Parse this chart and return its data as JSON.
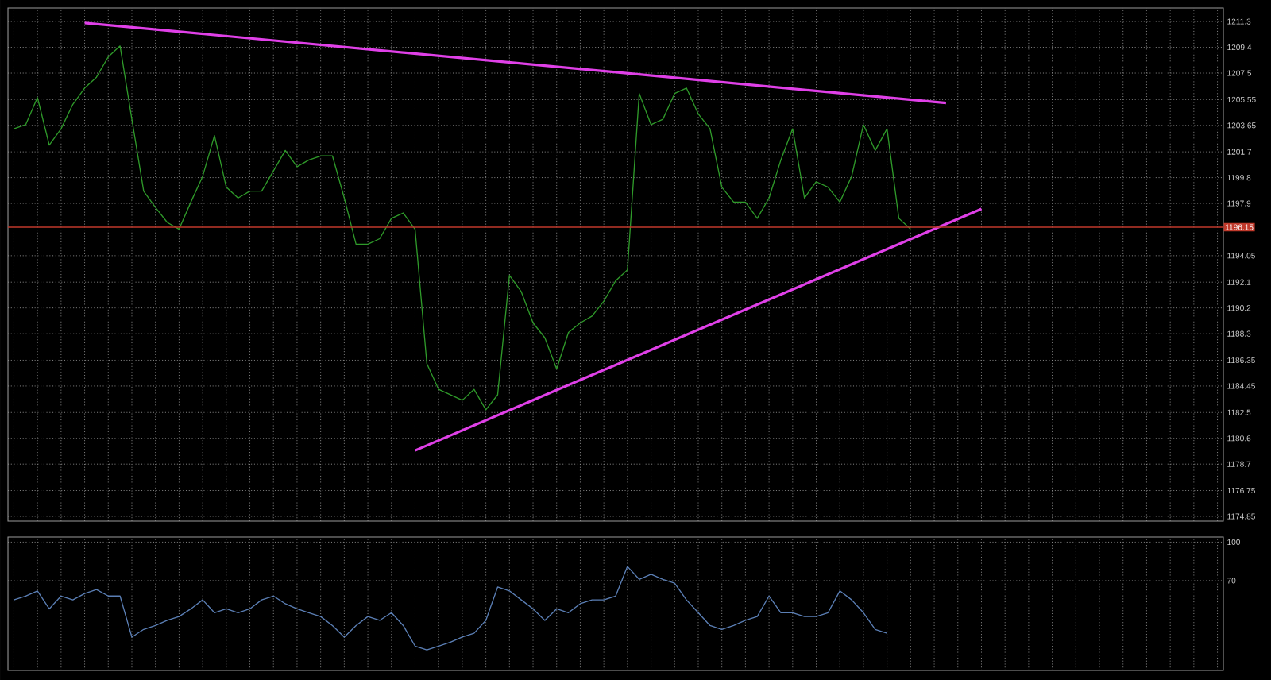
{
  "chart_data": [
    {
      "type": "line",
      "categories": [
        null,
        null,
        null,
        null,
        null,
        null,
        null,
        null,
        null,
        null,
        null,
        null,
        null,
        null,
        null,
        null,
        null,
        null,
        null,
        null,
        null,
        null,
        null,
        null,
        null,
        null,
        null,
        null,
        null,
        null,
        null,
        null,
        null,
        null,
        null,
        null,
        null,
        null,
        null,
        null,
        null,
        null,
        null,
        null,
        null,
        null,
        null,
        null,
        null,
        null,
        null,
        null,
        null,
        null,
        null,
        null,
        null,
        null,
        null,
        null,
        null,
        null,
        null,
        null,
        null,
        null,
        null,
        null,
        null,
        null,
        null,
        null,
        null,
        null,
        null,
        null,
        null,
        null,
        null,
        null,
        null,
        null,
        null,
        null,
        null,
        null,
        null,
        null,
        null,
        null,
        null,
        null,
        null,
        null,
        null,
        null,
        null,
        null,
        null,
        null,
        null,
        null,
        null
      ],
      "series": [
        {
          "color": "#2f9a2a",
          "values": [
            1203.4,
            1203.7,
            1205.7,
            1202.2,
            1203.4,
            1205.2,
            1206.4,
            1207.2,
            1208.7,
            1209.5,
            1204.1,
            1198.8,
            1197.6,
            1196.5,
            1196.0,
            1198.0,
            1199.9,
            1202.9,
            1199.1,
            1198.3,
            1198.8,
            1198.8,
            1200.3,
            1201.8,
            1200.6,
            1201.1,
            1201.4,
            1201.4,
            1198.3,
            1194.9,
            1194.9,
            1195.3,
            1196.8,
            1197.2,
            1196.0,
            1186.1,
            1184.2,
            1183.8,
            1183.4,
            1184.2,
            1182.7,
            1183.8,
            1192.6,
            1191.4,
            1189.1,
            1188.0,
            1185.7,
            1188.4,
            1189.1,
            1189.6,
            1190.7,
            1192.2,
            1193.0,
            1206.0,
            1203.7,
            1204.1,
            1206.0,
            1206.4,
            1204.5,
            1203.4,
            1199.1,
            1198.0,
            1198.0,
            1196.8,
            1198.3,
            1201.1,
            1203.4,
            1198.3,
            1199.5,
            1199.1,
            1198.0,
            1199.9,
            1203.7,
            1201.8,
            1203.4,
            1196.8,
            1196.0,
            null,
            null,
            null,
            null,
            null,
            null,
            null,
            null,
            null,
            null,
            null,
            null,
            null,
            null,
            null,
            null,
            null,
            null,
            null,
            null,
            null,
            null,
            null,
            null,
            null,
            null
          ]
        },
        {
          "type": "line",
          "color": "#e040e8",
          "values": [
            null,
            null,
            null,
            null,
            null,
            null,
            1211.2,
            null,
            null,
            null,
            null,
            null,
            null,
            null,
            null,
            null,
            null,
            null,
            null,
            null,
            null,
            null,
            null,
            null,
            null,
            null,
            null,
            null,
            null,
            null,
            null,
            null,
            null,
            null,
            null,
            null,
            null,
            null,
            null,
            null,
            null,
            null,
            null,
            null,
            null,
            null,
            null,
            null,
            null,
            null,
            null,
            null,
            null,
            null,
            null,
            null,
            null,
            null,
            null,
            null,
            null,
            null,
            null,
            null,
            null,
            null,
            null,
            null,
            null,
            null,
            null,
            null,
            null,
            null,
            null,
            null,
            null,
            null,
            null,
            1205.3,
            null,
            null,
            null,
            null,
            null,
            null,
            null,
            null,
            null,
            null,
            null,
            null,
            null,
            null,
            null,
            null,
            null,
            null,
            null,
            null,
            null,
            null,
            null
          ]
        },
        {
          "type": "line",
          "color": "#e040e8",
          "values": [
            null,
            null,
            null,
            null,
            null,
            null,
            null,
            null,
            null,
            null,
            null,
            null,
            null,
            null,
            null,
            null,
            null,
            null,
            null,
            null,
            null,
            null,
            null,
            null,
            null,
            null,
            null,
            null,
            null,
            null,
            null,
            null,
            null,
            null,
            1179.7,
            null,
            null,
            null,
            null,
            null,
            null,
            null,
            null,
            null,
            null,
            null,
            null,
            null,
            null,
            null,
            null,
            null,
            null,
            null,
            null,
            null,
            null,
            null,
            null,
            null,
            null,
            null,
            null,
            null,
            null,
            null,
            null,
            null,
            null,
            null,
            null,
            null,
            null,
            null,
            null,
            null,
            null,
            null,
            null,
            null,
            null,
            null,
            1197.5,
            null,
            null,
            null,
            null,
            null,
            null,
            null,
            null,
            null,
            null,
            null,
            null,
            null,
            null,
            null,
            null,
            null,
            null,
            null,
            null
          ]
        }
      ],
      "ylim": [
        1174.5,
        1212.3
      ],
      "yticks": [
        1174.85,
        1176.75,
        1178.7,
        1180.6,
        1182.5,
        1184.45,
        1186.35,
        1188.3,
        1190.2,
        1192.1,
        1194.05,
        1197.9,
        1199.8,
        1201.7,
        1203.65,
        1205.55,
        1207.5,
        1209.4,
        1211.3
      ],
      "ref_lines": [
        {
          "axis": "y",
          "value": 1196.15,
          "label": "1196.15",
          "color": "#c0392b"
        }
      ],
      "grid": true
    },
    {
      "type": "line",
      "categories": [
        null,
        null,
        null,
        null,
        null,
        null,
        null,
        null,
        null,
        null,
        null,
        null,
        null,
        null,
        null,
        null,
        null,
        null,
        null,
        null,
        null,
        null,
        null,
        null,
        null,
        null,
        null,
        null,
        null,
        null,
        null,
        null,
        null,
        null,
        null,
        null,
        null,
        null,
        null,
        null,
        null,
        null,
        null,
        null,
        null,
        null,
        null,
        null,
        null,
        null,
        null,
        null,
        null,
        null,
        null,
        null,
        null,
        null,
        null,
        null,
        null,
        null,
        null,
        null,
        null,
        null,
        null,
        null,
        null,
        null,
        null,
        null,
        null,
        null,
        null,
        null,
        null,
        null,
        null,
        null,
        null,
        null,
        null,
        null,
        null,
        null,
        null,
        null,
        null,
        null,
        null,
        null,
        null,
        null,
        null,
        null,
        null,
        null,
        null,
        null,
        null,
        null,
        null
      ],
      "series": [
        {
          "color": "#5b7fb5",
          "values": [
            55,
            58,
            62,
            48,
            58,
            55,
            60,
            63,
            58,
            58,
            26,
            32,
            35,
            39,
            42,
            48,
            55,
            45,
            48,
            45,
            48,
            55,
            58,
            52,
            48,
            45,
            42,
            35,
            26,
            35,
            42,
            39,
            45,
            35,
            19,
            16,
            19,
            22,
            26,
            29,
            39,
            65,
            62,
            55,
            48,
            39,
            48,
            45,
            52,
            55,
            55,
            58,
            81,
            71,
            75,
            71,
            68,
            55,
            45,
            35,
            32,
            35,
            39,
            42,
            58,
            45,
            45,
            42,
            42,
            45,
            62,
            55,
            45,
            32,
            29,
            null,
            null,
            null,
            null,
            null,
            null,
            null,
            null,
            null,
            null,
            null,
            null,
            null,
            null,
            null,
            null,
            null,
            null,
            null,
            null,
            null,
            null,
            null,
            null,
            null,
            null,
            null,
            null
          ]
        }
      ],
      "ylim": [
        0,
        104
      ],
      "yticks": [
        {
          "value": 30,
          "label": null
        },
        70,
        100
      ],
      "grid": true
    }
  ]
}
